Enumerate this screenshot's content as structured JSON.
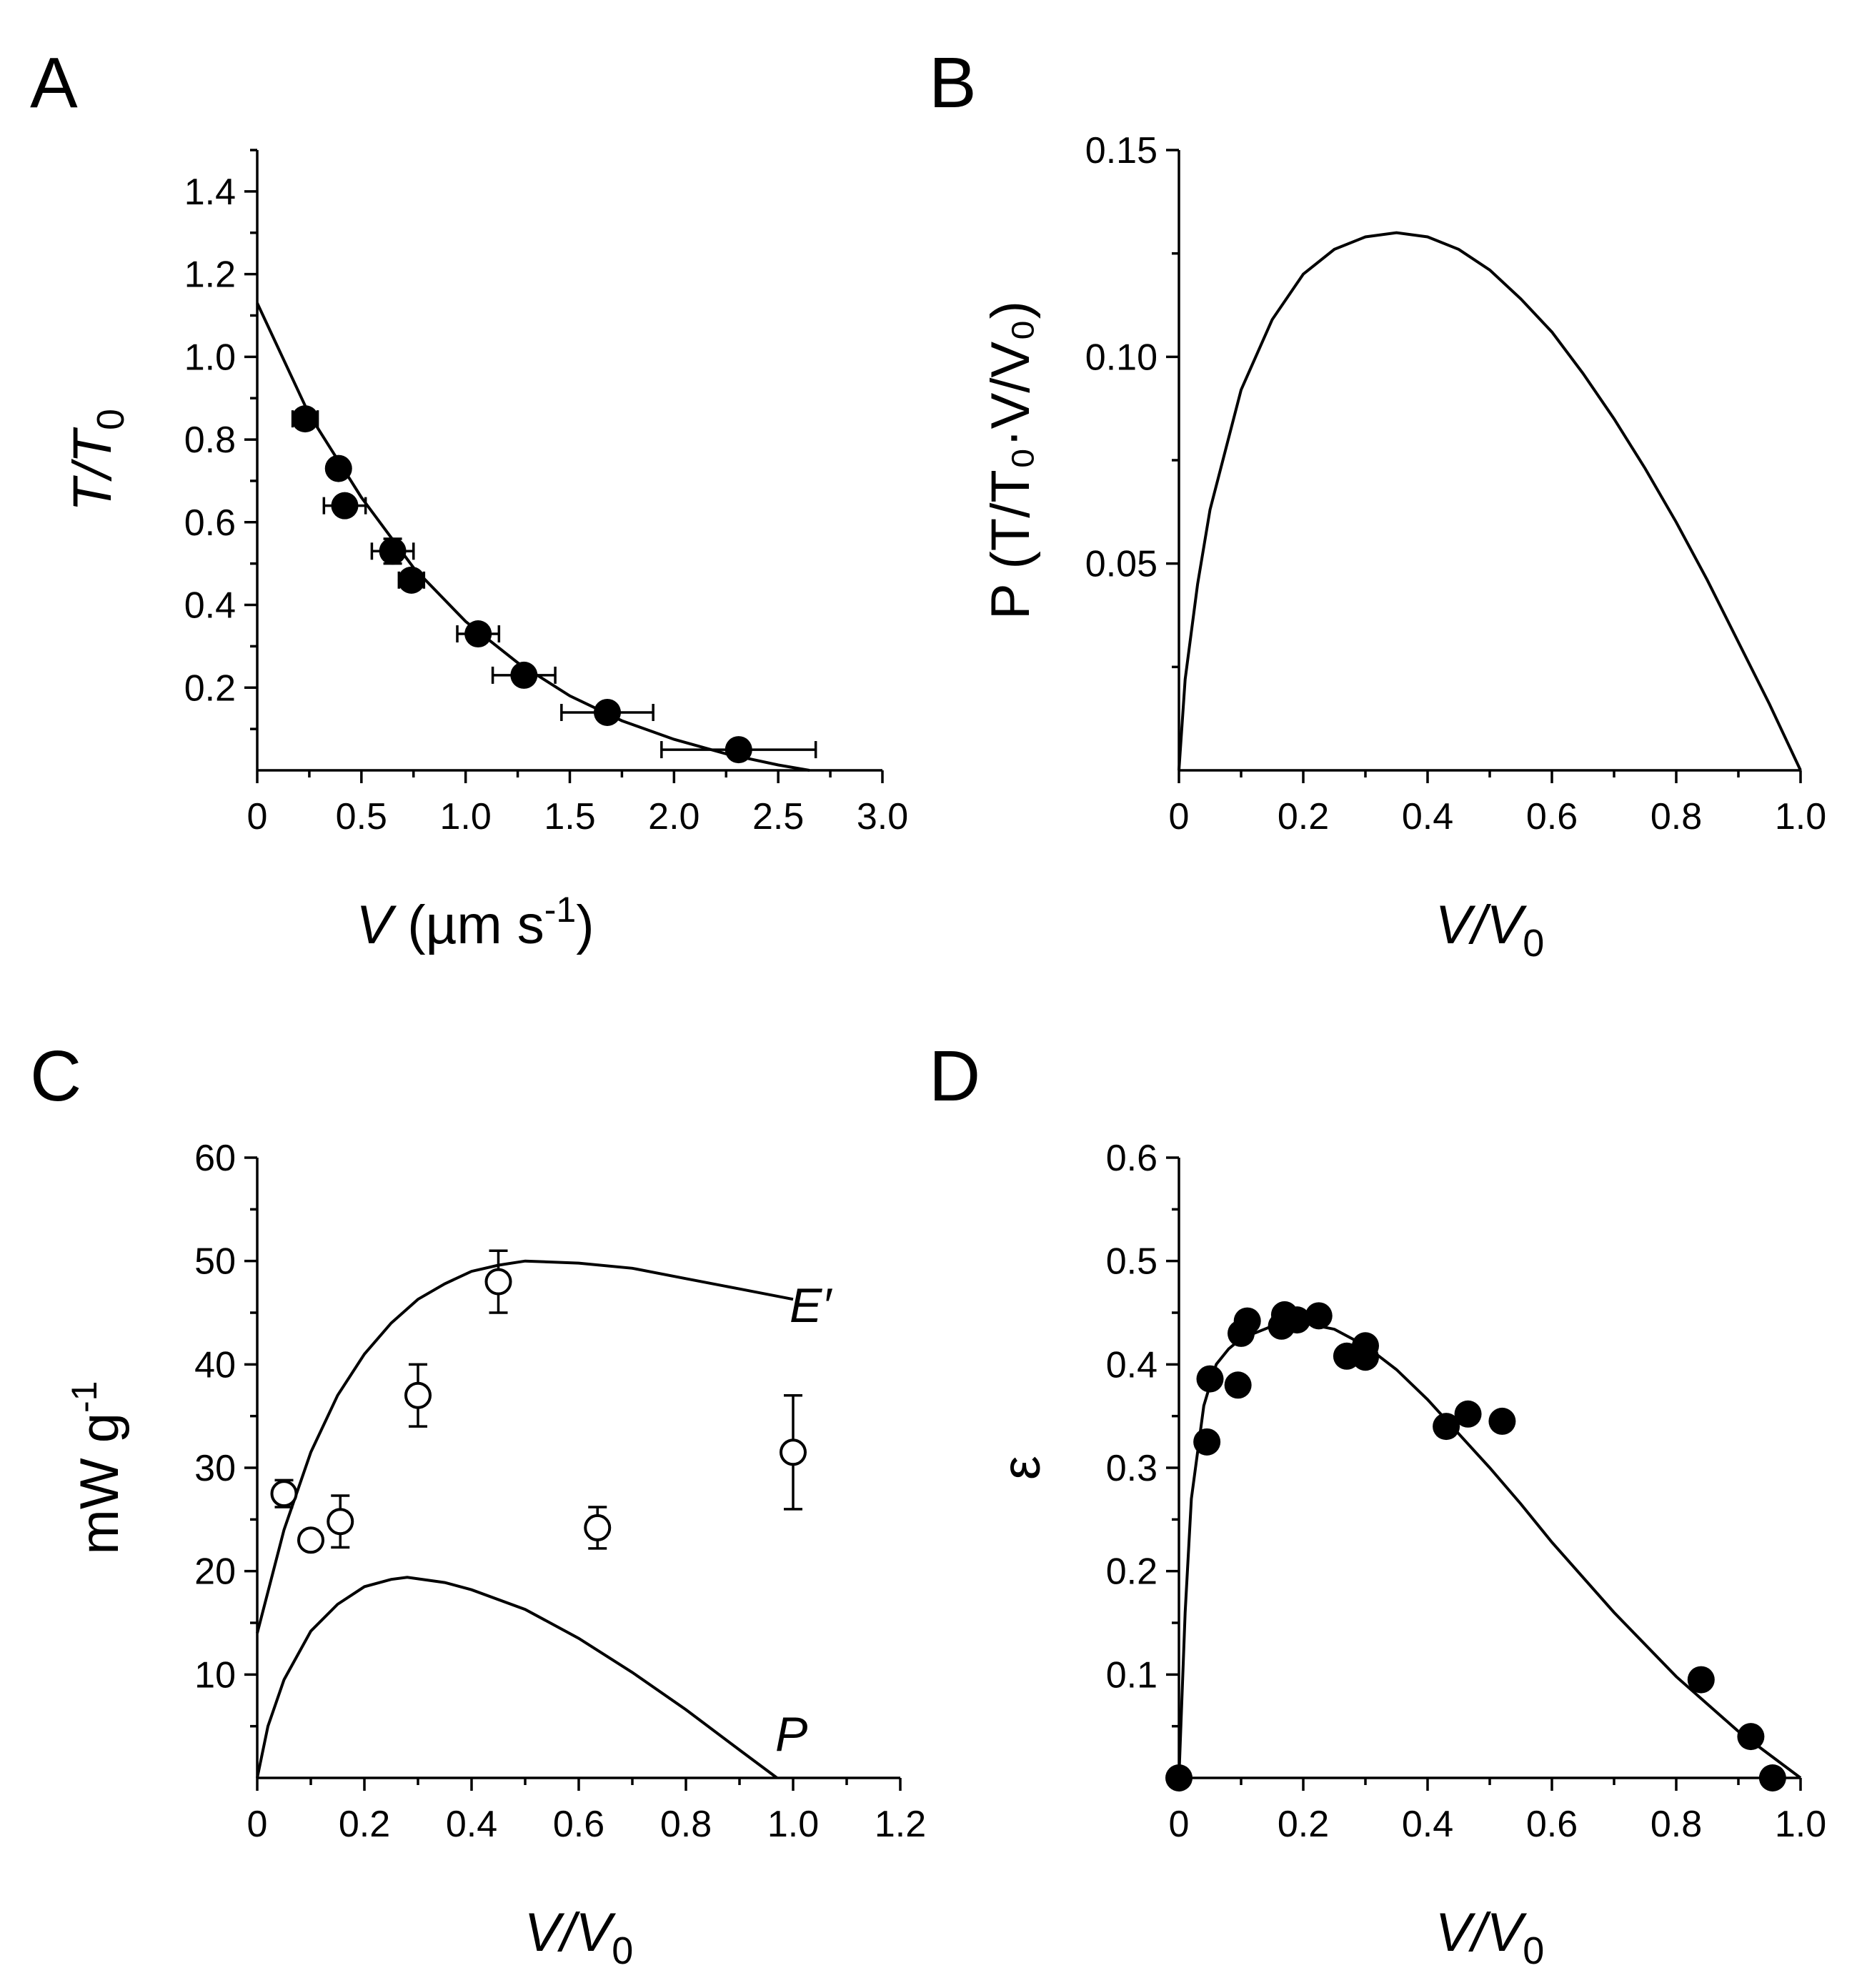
{
  "chart_data": [
    {
      "panel": "A",
      "type": "scatter",
      "xlim": [
        0,
        3.0
      ],
      "ylim": [
        0,
        1.5
      ],
      "xticks": [
        "0",
        "0.5",
        "1.0",
        "1.5",
        "2.0",
        "2.5",
        "3.0"
      ],
      "yticks": [
        "0.2",
        "0.4",
        "0.6",
        "0.8",
        "1.0",
        "1.2",
        "1.4"
      ],
      "xlabel": {
        "var": "V",
        "unit": " (µm s",
        "sup": "-1",
        "close": ")"
      },
      "ylabel": {
        "var": "T/T",
        "sub": "0"
      },
      "series": [
        {
          "style": "filled",
          "points": [
            {
              "x": 0.23,
              "y": 0.85,
              "xerr": 0.06,
              "yerr": 0.02
            },
            {
              "x": 0.39,
              "y": 0.73,
              "xerr": 0.03,
              "yerr": 0.02
            },
            {
              "x": 0.42,
              "y": 0.64,
              "xerr": 0.1,
              "yerr": 0.02
            },
            {
              "x": 0.65,
              "y": 0.53,
              "xerr": 0.1,
              "yerr": 0.03
            },
            {
              "x": 0.74,
              "y": 0.46,
              "xerr": 0.06,
              "yerr": 0.02
            },
            {
              "x": 1.06,
              "y": 0.33,
              "xerr": 0.1,
              "yerr": 0.02
            },
            {
              "x": 1.28,
              "y": 0.23,
              "xerr": 0.15,
              "yerr": 0.02
            },
            {
              "x": 1.68,
              "y": 0.14,
              "xerr": 0.22,
              "yerr": 0.02
            },
            {
              "x": 2.31,
              "y": 0.05,
              "xerr": 0.37,
              "yerr": 0.01
            }
          ]
        }
      ],
      "fit": {
        "x": [
          0,
          0.25,
          0.5,
          0.75,
          1.0,
          1.25,
          1.5,
          1.75,
          2.0,
          2.25,
          2.5,
          2.65
        ],
        "y": [
          1.13,
          0.86,
          0.66,
          0.49,
          0.36,
          0.26,
          0.18,
          0.12,
          0.075,
          0.04,
          0.013,
          0.0
        ]
      }
    },
    {
      "panel": "B",
      "type": "line",
      "xlim": [
        0,
        1.0
      ],
      "ylim": [
        0,
        0.15
      ],
      "xticks": [
        "0",
        "0.2",
        "0.4",
        "0.6",
        "0.8",
        "1.0"
      ],
      "yticks": [
        "0.05",
        "0.10",
        "0.15"
      ],
      "xlabel": {
        "var": "V/V",
        "sub": "0"
      },
      "ylabel": {
        "text": "P (T/T₀·V/V₀)"
      },
      "fit": {
        "x": [
          0,
          0.01,
          0.03,
          0.05,
          0.1,
          0.15,
          0.2,
          0.25,
          0.3,
          0.35,
          0.4,
          0.45,
          0.5,
          0.55,
          0.6,
          0.65,
          0.7,
          0.75,
          0.8,
          0.85,
          0.9,
          0.95,
          1.0
        ],
        "y": [
          0,
          0.022,
          0.045,
          0.063,
          0.092,
          0.109,
          0.12,
          0.126,
          0.129,
          0.13,
          0.129,
          0.126,
          0.121,
          0.114,
          0.106,
          0.096,
          0.085,
          0.073,
          0.06,
          0.046,
          0.031,
          0.016,
          0.0
        ]
      }
    },
    {
      "panel": "C",
      "type": "scatter",
      "xlim": [
        0,
        1.2
      ],
      "ylim": [
        0,
        60
      ],
      "xticks": [
        "0",
        "0.2",
        "0.4",
        "0.6",
        "0.8",
        "1.0",
        "1.2"
      ],
      "yticks": [
        "10",
        "20",
        "30",
        "40",
        "50",
        "60"
      ],
      "xlabel": {
        "var": "V/V",
        "sub": "0"
      },
      "ylabel": {
        "text": "mW g",
        "sup": "-1"
      },
      "series": [
        {
          "style": "open",
          "points": [
            {
              "x": 0.05,
              "y": 27.5,
              "yerr": 1.3
            },
            {
              "x": 0.1,
              "y": 23.0,
              "yerr": 0.8
            },
            {
              "x": 0.155,
              "y": 24.8,
              "yerr": 2.5
            },
            {
              "x": 0.3,
              "y": 37.0,
              "yerr": 3.0
            },
            {
              "x": 0.45,
              "y": 48.0,
              "yerr": 3.0
            },
            {
              "x": 0.635,
              "y": 24.2,
              "yerr": 2.0
            },
            {
              "x": 1.0,
              "y": 31.5,
              "yerr": 5.5
            }
          ]
        }
      ],
      "curves": [
        {
          "name": "E′",
          "x": [
            0,
            0.05,
            0.1,
            0.15,
            0.2,
            0.25,
            0.3,
            0.35,
            0.4,
            0.45,
            0.5,
            0.6,
            0.7,
            0.8,
            0.9,
            1.0
          ],
          "y": [
            14,
            24,
            31.5,
            37,
            41,
            44,
            46.3,
            47.8,
            49,
            49.6,
            50,
            49.8,
            49.3,
            48.3,
            47.3,
            46.3
          ]
        },
        {
          "name": "P",
          "x": [
            0,
            0.02,
            0.05,
            0.1,
            0.15,
            0.2,
            0.25,
            0.28,
            0.35,
            0.4,
            0.5,
            0.6,
            0.7,
            0.8,
            0.9,
            0.97
          ],
          "y": [
            0,
            5,
            9.5,
            14.2,
            16.8,
            18.5,
            19.2,
            19.4,
            18.9,
            18.2,
            16.3,
            13.5,
            10.2,
            6.6,
            2.7,
            0
          ]
        }
      ]
    },
    {
      "panel": "D",
      "type": "scatter",
      "xlim": [
        0,
        1.0
      ],
      "ylim": [
        0,
        0.6
      ],
      "xticks": [
        "0",
        "0.2",
        "0.4",
        "0.6",
        "0.8",
        "1.0"
      ],
      "yticks": [
        "0.1",
        "0.2",
        "0.3",
        "0.4",
        "0.5",
        "0.6"
      ],
      "xlabel": {
        "var": "V/V",
        "sub": "0"
      },
      "ylabel": {
        "text": "ε"
      },
      "series": [
        {
          "style": "filled",
          "points": [
            {
              "x": 0.0,
              "y": 0.0
            },
            {
              "x": 0.045,
              "y": 0.325
            },
            {
              "x": 0.05,
              "y": 0.386
            },
            {
              "x": 0.095,
              "y": 0.38
            },
            {
              "x": 0.1,
              "y": 0.43
            },
            {
              "x": 0.11,
              "y": 0.442
            },
            {
              "x": 0.165,
              "y": 0.437
            },
            {
              "x": 0.17,
              "y": 0.448
            },
            {
              "x": 0.19,
              "y": 0.443
            },
            {
              "x": 0.225,
              "y": 0.447
            },
            {
              "x": 0.27,
              "y": 0.408
            },
            {
              "x": 0.3,
              "y": 0.407
            },
            {
              "x": 0.3,
              "y": 0.418
            },
            {
              "x": 0.43,
              "y": 0.34
            },
            {
              "x": 0.465,
              "y": 0.352
            },
            {
              "x": 0.52,
              "y": 0.345
            },
            {
              "x": 0.84,
              "y": 0.095
            },
            {
              "x": 0.92,
              "y": 0.04
            },
            {
              "x": 0.955,
              "y": 0.0
            }
          ]
        }
      ],
      "fit": {
        "x": [
          0,
          0.01,
          0.02,
          0.04,
          0.06,
          0.08,
          0.1,
          0.15,
          0.2,
          0.25,
          0.3,
          0.35,
          0.4,
          0.45,
          0.5,
          0.55,
          0.6,
          0.7,
          0.8,
          0.9,
          1.0
        ],
        "y": [
          0,
          0.16,
          0.27,
          0.36,
          0.4,
          0.415,
          0.425,
          0.437,
          0.44,
          0.434,
          0.418,
          0.395,
          0.366,
          0.333,
          0.3,
          0.265,
          0.228,
          0.16,
          0.098,
          0.045,
          0.0
        ]
      }
    }
  ],
  "panel_labels": {
    "a": "A",
    "b": "B",
    "c": "C",
    "d": "D"
  },
  "curve_labels": {
    "e_prime": "E′",
    "p": "P"
  }
}
